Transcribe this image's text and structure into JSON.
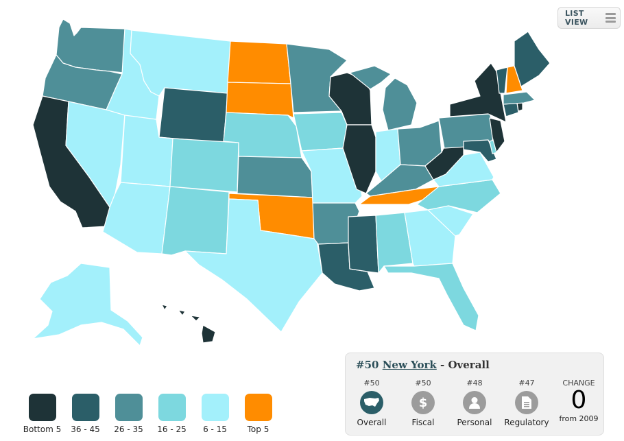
{
  "toolbar": {
    "list_view_label": "LIST VIEW",
    "menu_icon": "hamburger-icon"
  },
  "colors": {
    "bottom5": "#1e3337",
    "r36_45": "#2b5e68",
    "r26_35": "#4f8f98",
    "r16_25": "#7dd8df",
    "r6_15": "#a3f0fb",
    "top5": "#ff8c00"
  },
  "legend": [
    {
      "label": "Bottom 5",
      "color": "#1e3337"
    },
    {
      "label": "36 - 45",
      "color": "#2b5e68"
    },
    {
      "label": "26 - 35",
      "color": "#4f8f98"
    },
    {
      "label": "16 - 25",
      "color": "#7dd8df"
    },
    {
      "label": "6 - 15",
      "color": "#a3f0fb"
    },
    {
      "label": "Top 5",
      "color": "#ff8c00"
    }
  ],
  "selected": {
    "rank": "#50",
    "state": "New York",
    "suffix": "- Overall",
    "metrics": [
      {
        "rank": "#50",
        "name": "Overall",
        "icon": "usa-map-icon"
      },
      {
        "rank": "#50",
        "name": "Fiscal",
        "icon": "dollar-icon"
      },
      {
        "rank": "#48",
        "name": "Personal",
        "icon": "person-icon"
      },
      {
        "rank": "#47",
        "name": "Regulatory",
        "icon": "document-icon"
      }
    ],
    "change": {
      "label": "CHANGE",
      "value": "0",
      "from": "from 2009"
    }
  }
}
